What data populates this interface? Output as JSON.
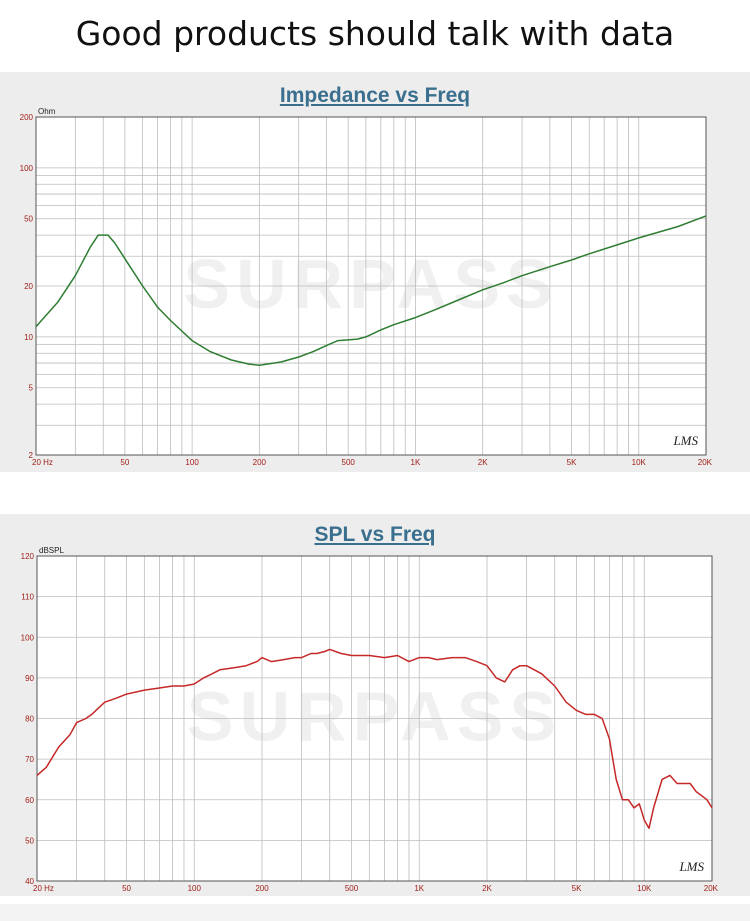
{
  "headline": "Good products should talk with data",
  "watermark": "SURPASS",
  "chart_data": [
    {
      "type": "line",
      "title": "Impedance vs Freq",
      "ylabel": "Ohm",
      "xscale": "log",
      "yscale": "log",
      "xlim": [
        20,
        20000
      ],
      "ylim": [
        2,
        200
      ],
      "xticks": [
        {
          "v": 20,
          "label": "20  Hz"
        },
        {
          "v": 50,
          "label": "50"
        },
        {
          "v": 100,
          "label": "100"
        },
        {
          "v": 200,
          "label": "200"
        },
        {
          "v": 500,
          "label": "500"
        },
        {
          "v": 1000,
          "label": "1K"
        },
        {
          "v": 2000,
          "label": "2K"
        },
        {
          "v": 5000,
          "label": "5K"
        },
        {
          "v": 10000,
          "label": "10K"
        },
        {
          "v": 20000,
          "label": "20K"
        }
      ],
      "yticks": [
        {
          "v": 2,
          "label": "2"
        },
        {
          "v": 5,
          "label": "5"
        },
        {
          "v": 10,
          "label": "10"
        },
        {
          "v": 20,
          "label": "20"
        },
        {
          "v": 50,
          "label": "50"
        },
        {
          "v": 100,
          "label": "100"
        },
        {
          "v": 200,
          "label": "200"
        }
      ],
      "grid": true,
      "corner_mark": "LMS",
      "color": "#2e7d32",
      "series": [
        {
          "x": [
            20,
            25,
            30,
            35,
            38,
            40,
            42,
            45,
            50,
            60,
            70,
            80,
            100,
            120,
            150,
            180,
            200,
            250,
            300,
            350,
            400,
            450,
            500,
            550,
            600,
            700,
            800,
            1000,
            1200,
            1500,
            2000,
            2500,
            3000,
            4000,
            5000,
            6000,
            8000,
            10000,
            15000,
            20000
          ],
          "y": [
            11.5,
            16,
            23,
            34,
            40,
            40,
            40,
            36,
            29,
            20,
            15,
            12.5,
            9.5,
            8.2,
            7.3,
            6.9,
            6.8,
            7.1,
            7.6,
            8.2,
            8.9,
            9.5,
            9.6,
            9.7,
            10,
            11,
            11.8,
            13,
            14.3,
            16.2,
            19,
            21,
            23,
            26,
            28.5,
            31,
            35,
            38.5,
            45,
            52
          ]
        }
      ]
    },
    {
      "type": "line",
      "title": "SPL vs Freq",
      "ylabel": "dBSPL",
      "xscale": "log",
      "xlim": [
        20,
        20000
      ],
      "ylim": [
        40,
        120
      ],
      "xticks": [
        {
          "v": 20,
          "label": "20  Hz"
        },
        {
          "v": 50,
          "label": "50"
        },
        {
          "v": 100,
          "label": "100"
        },
        {
          "v": 200,
          "label": "200"
        },
        {
          "v": 500,
          "label": "500"
        },
        {
          "v": 1000,
          "label": "1K"
        },
        {
          "v": 2000,
          "label": "2K"
        },
        {
          "v": 5000,
          "label": "5K"
        },
        {
          "v": 10000,
          "label": "10K"
        },
        {
          "v": 20000,
          "label": "20K"
        }
      ],
      "yticks": [
        {
          "v": 40,
          "label": "40"
        },
        {
          "v": 50,
          "label": "50"
        },
        {
          "v": 60,
          "label": "60"
        },
        {
          "v": 70,
          "label": "70"
        },
        {
          "v": 80,
          "label": "80"
        },
        {
          "v": 90,
          "label": "90"
        },
        {
          "v": 100,
          "label": "100"
        },
        {
          "v": 110,
          "label": "110"
        },
        {
          "v": 120,
          "label": "120"
        }
      ],
      "grid": true,
      "corner_mark": "LMS",
      "color": "#c62828",
      "series": [
        {
          "x": [
            20,
            22,
            25,
            28,
            30,
            33,
            35,
            40,
            45,
            50,
            60,
            70,
            80,
            90,
            100,
            110,
            120,
            130,
            150,
            170,
            190,
            200,
            220,
            250,
            280,
            300,
            330,
            350,
            380,
            400,
            450,
            500,
            550,
            600,
            700,
            800,
            900,
            1000,
            1100,
            1200,
            1400,
            1600,
            1800,
            2000,
            2200,
            2400,
            2600,
            2800,
            3000,
            3500,
            4000,
            4500,
            5000,
            5500,
            6000,
            6500,
            7000,
            7500,
            8000,
            8500,
            9000,
            9500,
            10000,
            10500,
            11000,
            12000,
            13000,
            14000,
            15000,
            16000,
            17000,
            18000,
            19000,
            20000
          ],
          "y": [
            66,
            68,
            73,
            76,
            79,
            80,
            81,
            84,
            85,
            86,
            87,
            87.5,
            88,
            88,
            88.5,
            90,
            91,
            92,
            92.5,
            93,
            94,
            95,
            94,
            94.5,
            95,
            95,
            96,
            96,
            96.5,
            97,
            96,
            95.5,
            95.5,
            95.5,
            95,
            95.5,
            94,
            95,
            95,
            94.5,
            95,
            95,
            94,
            93,
            90,
            89,
            92,
            93,
            93,
            91,
            88,
            84,
            82,
            81,
            81,
            80,
            75,
            65,
            60,
            60,
            58,
            59,
            55,
            53,
            58,
            65,
            66,
            64,
            64,
            64,
            62,
            61,
            60,
            58
          ]
        }
      ]
    }
  ]
}
